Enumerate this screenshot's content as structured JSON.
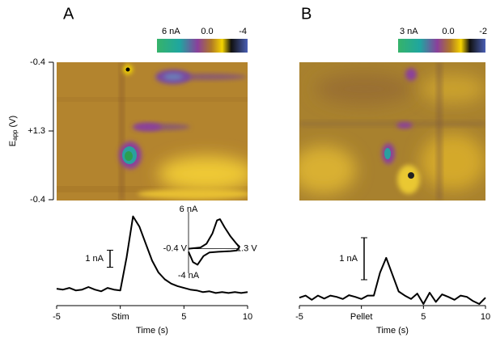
{
  "panels": [
    {
      "label": "A",
      "colorbar": {
        "labels": [
          "6 nA",
          "0.0",
          "-4"
        ]
      },
      "y_axis_label": {
        "main": "E",
        "sub": "app",
        "unit": "(V)"
      },
      "y_ticks": [
        "-0.4",
        "+1.3",
        "-0.4"
      ]
    },
    {
      "label": "B",
      "colorbar": {
        "labels": [
          "3 nA",
          "0.0",
          "-2"
        ]
      }
    }
  ],
  "chart_data": [
    {
      "type": "line",
      "xlabel": "Time (s)",
      "x": [
        -5,
        -4.5,
        -4,
        -3.5,
        -3,
        -2.5,
        -2,
        -1.5,
        -1,
        -0.5,
        0,
        0.5,
        1,
        1.5,
        2,
        2.5,
        3,
        3.5,
        4,
        4.5,
        5,
        5.5,
        6,
        6.5,
        7,
        7.5,
        8,
        8.5,
        9,
        9.5,
        10
      ],
      "series": [
        {
          "color": "#000000",
          "values": [
            0.15,
            0.1,
            0.2,
            0.05,
            0.1,
            0.25,
            0.1,
            0,
            0.2,
            0.1,
            0.05,
            2.0,
            4.4,
            3.8,
            2.8,
            1.8,
            1.1,
            0.7,
            0.45,
            0.3,
            0.2,
            0.1,
            0.05,
            -0.05,
            0,
            -0.1,
            -0.05,
            -0.1,
            -0.05,
            -0.1,
            -0.05
          ]
        }
      ],
      "xlim": [
        -5,
        10
      ],
      "xticks": [
        -5,
        {
          "value": 0,
          "label": "Stim"
        },
        5,
        10
      ],
      "ylim": [
        -0.7,
        5.0
      ],
      "scale_bar": {
        "value": 1,
        "label": "1 nA"
      }
    },
    {
      "type": "line",
      "xlabel": "Time (s)",
      "x": [
        -5,
        -4.5,
        -4,
        -3.5,
        -3,
        -2.5,
        -2,
        -1.5,
        -1,
        -0.5,
        0,
        0.5,
        1,
        1.5,
        2,
        2.5,
        3,
        3.5,
        4,
        4.5,
        5,
        5.5,
        6,
        6.5,
        7,
        7.5,
        8,
        8.5,
        9,
        9.5,
        10
      ],
      "series": [
        {
          "color": "#000000",
          "values": [
            0,
            0.05,
            -0.05,
            0.05,
            -0.02,
            0.05,
            0.02,
            -0.03,
            0.06,
            0.02,
            -0.03,
            0.05,
            0.05,
            0.6,
            0.95,
            0.55,
            0.15,
            0.05,
            -0.03,
            0.1,
            -0.15,
            0.12,
            -0.1,
            0.08,
            0.02,
            -0.05,
            0.05,
            0.02,
            -0.08,
            -0.15,
            0
          ]
        }
      ],
      "xlim": [
        -5,
        10
      ],
      "xticks": [
        -5,
        {
          "value": 0,
          "label": "Pellet"
        },
        5,
        10
      ],
      "ylim": [
        -0.13,
        2.18
      ],
      "scale_bar": {
        "value": 1,
        "label": "1 nA"
      }
    },
    {
      "type": "cv",
      "x": [
        -0.4,
        0,
        0.2,
        0.4,
        0.55,
        0.65,
        0.8,
        1.0,
        1.2,
        1.3,
        1.2,
        1.0,
        0.6,
        0.3,
        0.1,
        -0.1,
        -0.25,
        -0.4
      ],
      "series": [
        {
          "color": "#000000",
          "values": [
            0,
            0.2,
            0.8,
            2.5,
            4.6,
            4.8,
            3.5,
            2,
            0.8,
            0.3,
            -0.3,
            -0.4,
            -0.5,
            -0.6,
            -1.2,
            -2.6,
            -2.2,
            -0.5
          ]
        }
      ],
      "xlim": [
        -0.4,
        1.3
      ],
      "xticks": [
        {
          "value": -0.4,
          "label": "-0.4 V"
        },
        {
          "value": 1.3,
          "label": "1.3 V"
        }
      ],
      "ylim": [
        -4,
        6
      ],
      "yticks": [
        {
          "value": 6,
          "label": "6 nA"
        },
        {
          "value": -4,
          "label": "-4 nA"
        }
      ]
    }
  ]
}
